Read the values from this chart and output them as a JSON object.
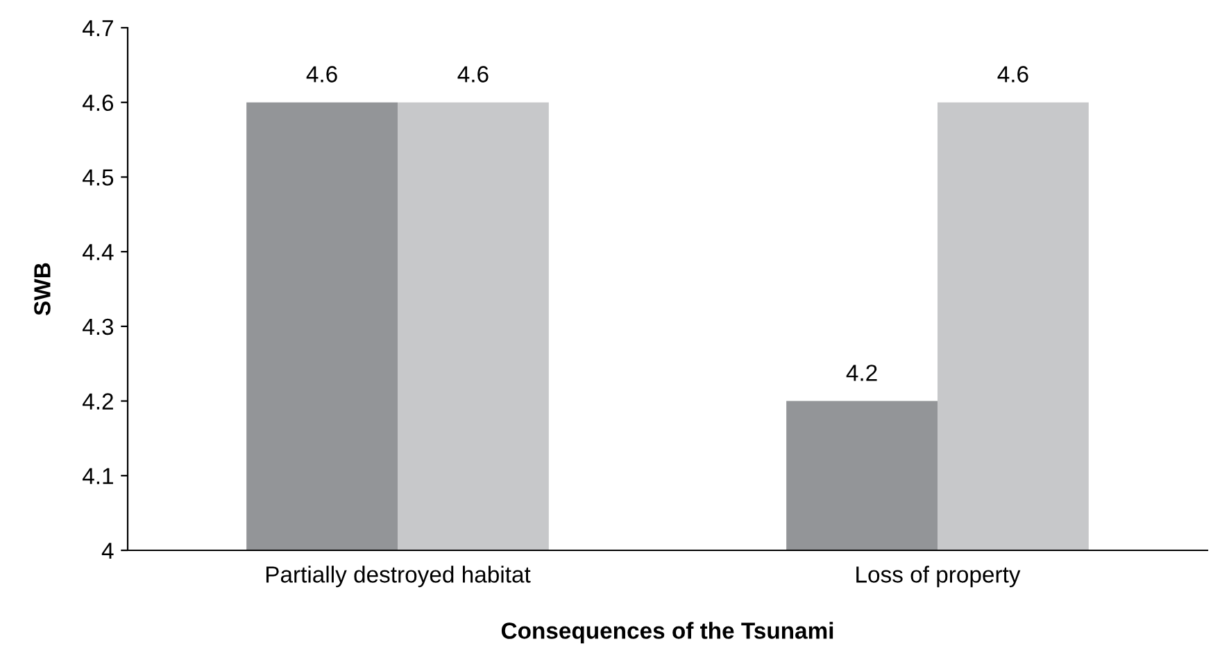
{
  "chart_data": {
    "type": "bar",
    "xlabel": "Consequences of the Tsunami",
    "ylabel": "SWB",
    "categories": [
      "Partially destroyed habitat",
      "Loss of property"
    ],
    "series": [
      {
        "color": "#939598",
        "values": [
          4.6,
          4.2
        ]
      },
      {
        "color": "#c7c8ca",
        "values": [
          4.6,
          4.6
        ]
      }
    ],
    "ylim": [
      4,
      4.7
    ],
    "yticks": [
      4,
      4.1,
      4.2,
      4.3,
      4.4,
      4.5,
      4.6,
      4.7
    ],
    "grid": false,
    "legend": false,
    "data_labels": true
  }
}
